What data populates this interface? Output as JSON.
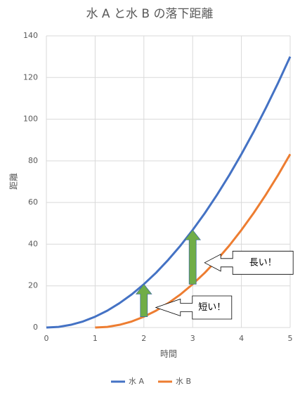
{
  "chart_data": {
    "type": "line",
    "title": "水 A と水 B の落下距離",
    "x_label": "時間",
    "y_label": "距離",
    "x": [
      0,
      0.25,
      0.5,
      0.75,
      1,
      1.25,
      1.5,
      1.75,
      2,
      2.25,
      2.5,
      2.75,
      3,
      3.25,
      3.5,
      3.75,
      4,
      4.25,
      4.5,
      4.75,
      5
    ],
    "series": [
      {
        "name": "水 A",
        "color": "#4472c4",
        "values": [
          0,
          0.3,
          1.3,
          2.9,
          5.2,
          8.1,
          11.7,
          15.9,
          20.8,
          26.3,
          32.5,
          39.3,
          46.8,
          54.9,
          63.7,
          73.1,
          83.2,
          93.9,
          105.3,
          117.3,
          130
        ]
      },
      {
        "name": "水 B",
        "color": "#ed7d31",
        "values": [
          null,
          null,
          null,
          null,
          0,
          0.3,
          1.3,
          2.9,
          5.2,
          8.1,
          11.7,
          15.9,
          20.8,
          26.3,
          32.5,
          39.3,
          46.8,
          54.9,
          63.7,
          73.1,
          83.2
        ]
      }
    ],
    "xlim": [
      0,
      5
    ],
    "xticks": [
      0,
      1,
      2,
      3,
      4,
      5
    ],
    "ylim": [
      0,
      140
    ],
    "yticks": [
      0,
      20,
      40,
      60,
      80,
      100,
      120,
      140
    ],
    "grid": true,
    "legend": "bottom",
    "annotations": [
      {
        "text": "短い！"
      },
      {
        "text": "長い！"
      }
    ]
  }
}
